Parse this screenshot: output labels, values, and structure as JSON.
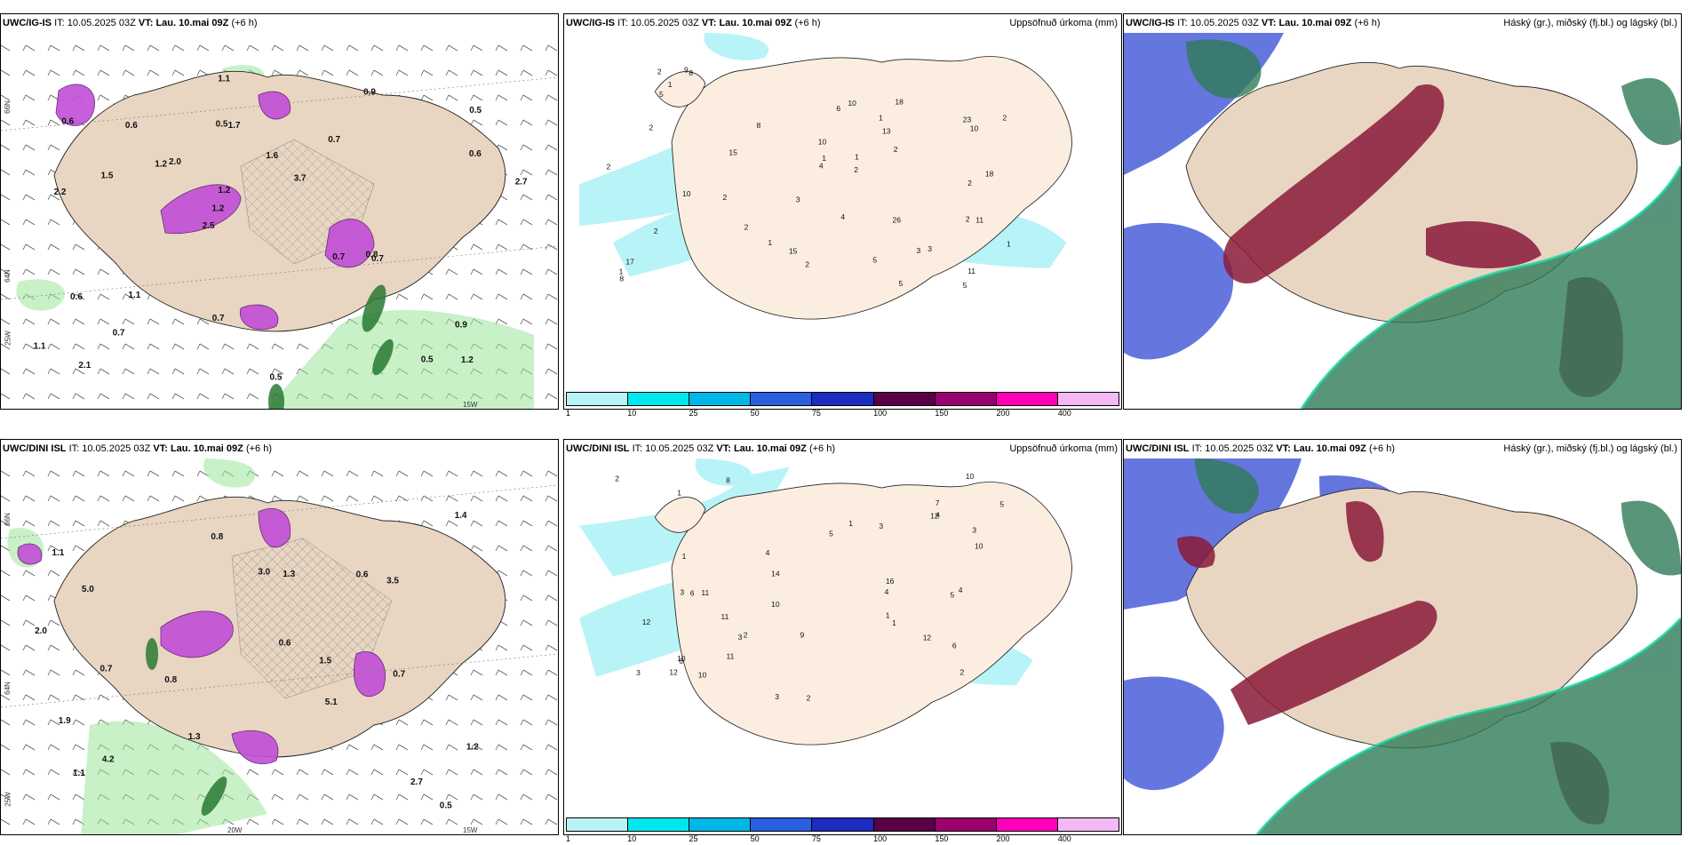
{
  "rows": [
    {
      "model": "UWC/IG-IS",
      "panels": [
        {
          "id": "wind",
          "model": "UWC/IG-IS",
          "it_label": "IT:",
          "it": "10.05.2025 03Z",
          "vt_label": "VT:",
          "vt": "Lau. 10.mai 09Z",
          "lead": "(+6 h)",
          "right_title": ""
        },
        {
          "id": "precip",
          "model": "UWC/IG-IS",
          "it_label": "IT:",
          "it": "10.05.2025 03Z",
          "vt_label": "VT:",
          "vt": "Lau. 10.mai 09Z",
          "lead": "(+6 h)",
          "right_title": "Uppsöfnuð úrkoma (mm)"
        },
        {
          "id": "cloud",
          "model": "UWC/IG-IS",
          "it_label": "IT:",
          "it": "10.05.2025 03Z",
          "vt_label": "VT:",
          "vt": "Lau. 10.mai 09Z",
          "lead": "(+6 h)",
          "right_title": "Háský (gr.), miðský (fj.bl.) og lágský (bl.)"
        }
      ]
    },
    {
      "model": "UWC/DINI ISL",
      "panels": [
        {
          "id": "wind",
          "model": "UWC/DINI ISL",
          "it_label": "IT:",
          "it": "10.05.2025 03Z",
          "vt_label": "VT:",
          "vt": "Lau. 10.mai 09Z",
          "lead": "(+6 h)",
          "right_title": ""
        },
        {
          "id": "precip",
          "model": "UWC/DINI ISL",
          "it_label": "IT:",
          "it": "10.05.2025 03Z",
          "vt_label": "VT:",
          "vt": "Lau. 10.mai 09Z",
          "lead": "(+6 h)",
          "right_title": "Uppsöfnuð úrkoma (mm)"
        },
        {
          "id": "cloud",
          "model": "UWC/DINI ISL",
          "it_label": "IT:",
          "it": "10.05.2025 03Z",
          "vt_label": "VT:",
          "vt": "Lau. 10.mai 09Z",
          "lead": "(+6 h)",
          "right_title": "Háský (gr.), miðský (fj.bl.) og lágský (bl.)"
        }
      ]
    }
  ],
  "colorbar": {
    "labels": [
      "1",
      "10",
      "25",
      "50",
      "75",
      "100",
      "150",
      "200",
      "400"
    ],
    "colors": [
      "#b8f4f7",
      "#00e8ee",
      "#00b8e8",
      "#2a5fe0",
      "#1c2cc0",
      "#5a0048",
      "#9a006e",
      "#ff00b8",
      "#f4b8f4"
    ]
  },
  "axis_labels": {
    "lat66": "66N",
    "lat64": "64N",
    "lon25": "25W",
    "lon20": "20W",
    "lon15": "15W"
  },
  "wind_labels_top": [
    "1.2",
    "2.2",
    "0.5",
    "2.5",
    "0.7",
    "2.1",
    "0.5",
    "1.6",
    "0.6",
    "2.0",
    "1.1",
    "0.7",
    "1.7",
    "3.7",
    "0.7",
    "0.6",
    "1.1",
    "2.7",
    "0.7",
    "0.6",
    "1.2",
    "0.7",
    "1.2",
    "0.6",
    "0.9",
    "1.1",
    "0.5",
    "0.9",
    "0.8",
    "0.5",
    "1.2",
    "1.5"
  ],
  "wind_labels_bottom": [
    "0.5",
    "0.7",
    "5.1",
    "1.1",
    "1.2",
    "5.0",
    "4.2",
    "0.8",
    "3.5",
    "3.0",
    "0.6",
    "2.7",
    "1.3",
    "0.8",
    "1.5",
    "1.9",
    "0.7",
    "0.6",
    "2.0",
    "1.1",
    "1.4",
    "1.3"
  ],
  "precip_labels_top": [
    "2",
    "1",
    "2",
    "1",
    "10",
    "3",
    "10",
    "13",
    "11",
    "17",
    "8",
    "4",
    "2",
    "2",
    "2",
    "1",
    "5",
    "23",
    "11",
    "26",
    "10",
    "18",
    "15",
    "8",
    "9",
    "2",
    "3",
    "5",
    "5",
    "2",
    "15",
    "1",
    "1",
    "10",
    "8",
    "6",
    "2",
    "3",
    "1",
    "2",
    "1",
    "2",
    "4",
    "2",
    "2",
    "18",
    "5"
  ],
  "precip_labels_bottom": [
    "3",
    "1",
    "1",
    "4",
    "2",
    "12",
    "8",
    "9",
    "5",
    "10",
    "5",
    "6",
    "7",
    "3",
    "2",
    "4",
    "11",
    "14",
    "11",
    "10",
    "3",
    "6",
    "16",
    "12",
    "10",
    "3",
    "3",
    "11",
    "10",
    "12",
    "4",
    "5",
    "6",
    "2",
    "2",
    "4",
    "1",
    "12",
    "3",
    "1",
    "10",
    "1"
  ]
}
